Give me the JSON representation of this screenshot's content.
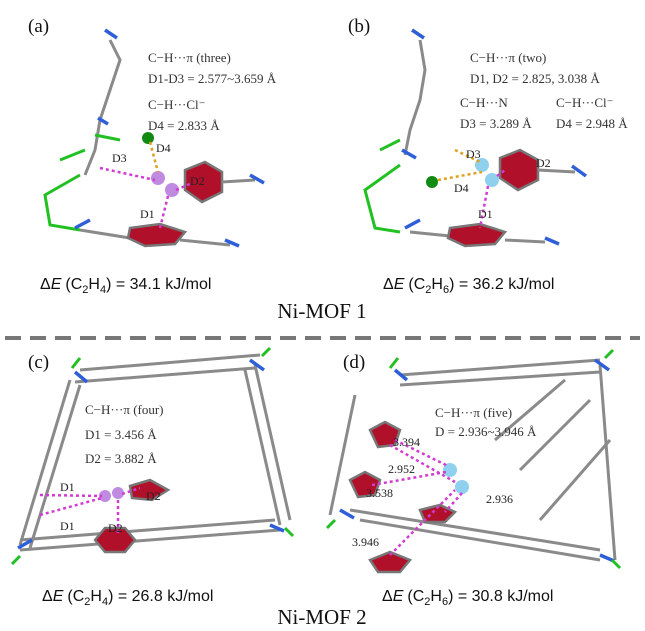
{
  "panels": [
    {
      "label": "(a)",
      "annotations": [
        "C−H···π (three)",
        "D1-D3 = 2.577~3.659 Å",
        "C−H···Cl⁻",
        "D4 = 2.833 Å"
      ],
      "distance_labels": [
        "D3",
        "D4",
        "D2",
        "D1"
      ],
      "energy": {
        "delta": "Δ",
        "symbol": "E",
        "species": [
          "(C",
          "2",
          "H",
          "4",
          ")"
        ],
        "value": " = 34.1 kJ/mol"
      }
    },
    {
      "label": "(b)",
      "annotations": [
        "C−H···π (two)",
        "D1, D2 = 2.825, 3.038 Å",
        "C−H···N",
        "D3 = 3.289 Å",
        "C−H···Cl⁻",
        "D4 = 2.948 Å"
      ],
      "distance_labels": [
        "D3",
        "D2",
        "D4",
        "D1"
      ],
      "energy": {
        "delta": "Δ",
        "symbol": "E",
        "species": [
          "(C",
          "2",
          "H",
          "6",
          ")"
        ],
        "value": " = 36.2 kJ/mol"
      }
    },
    {
      "label": "(c)",
      "annotations": [
        "C−H···π (four)",
        "D1 = 3.456 Å",
        "D2 = 3.882 Å"
      ],
      "distance_labels": [
        "D1",
        "D2",
        "D1",
        "D2"
      ],
      "energy": {
        "delta": "Δ",
        "symbol": "E",
        "species": [
          "(C",
          "2",
          "H",
          "4",
          ")"
        ],
        "value": " = 26.8 kJ/mol"
      }
    },
    {
      "label": "(d)",
      "annotations": [
        "C−H···π (five)",
        "D = 2.936~3.946 Å"
      ],
      "distance_labels": [
        "3.394",
        "2.952",
        "3.538",
        "2.936",
        "3.946"
      ],
      "energy": {
        "delta": "Δ",
        "symbol": "E",
        "species": [
          "(C",
          "2",
          "H",
          "6",
          ")"
        ],
        "value": " = 30.8 kJ/mol"
      }
    }
  ],
  "sections": [
    "Ni-MOF 1",
    "Ni-MOF 2"
  ]
}
